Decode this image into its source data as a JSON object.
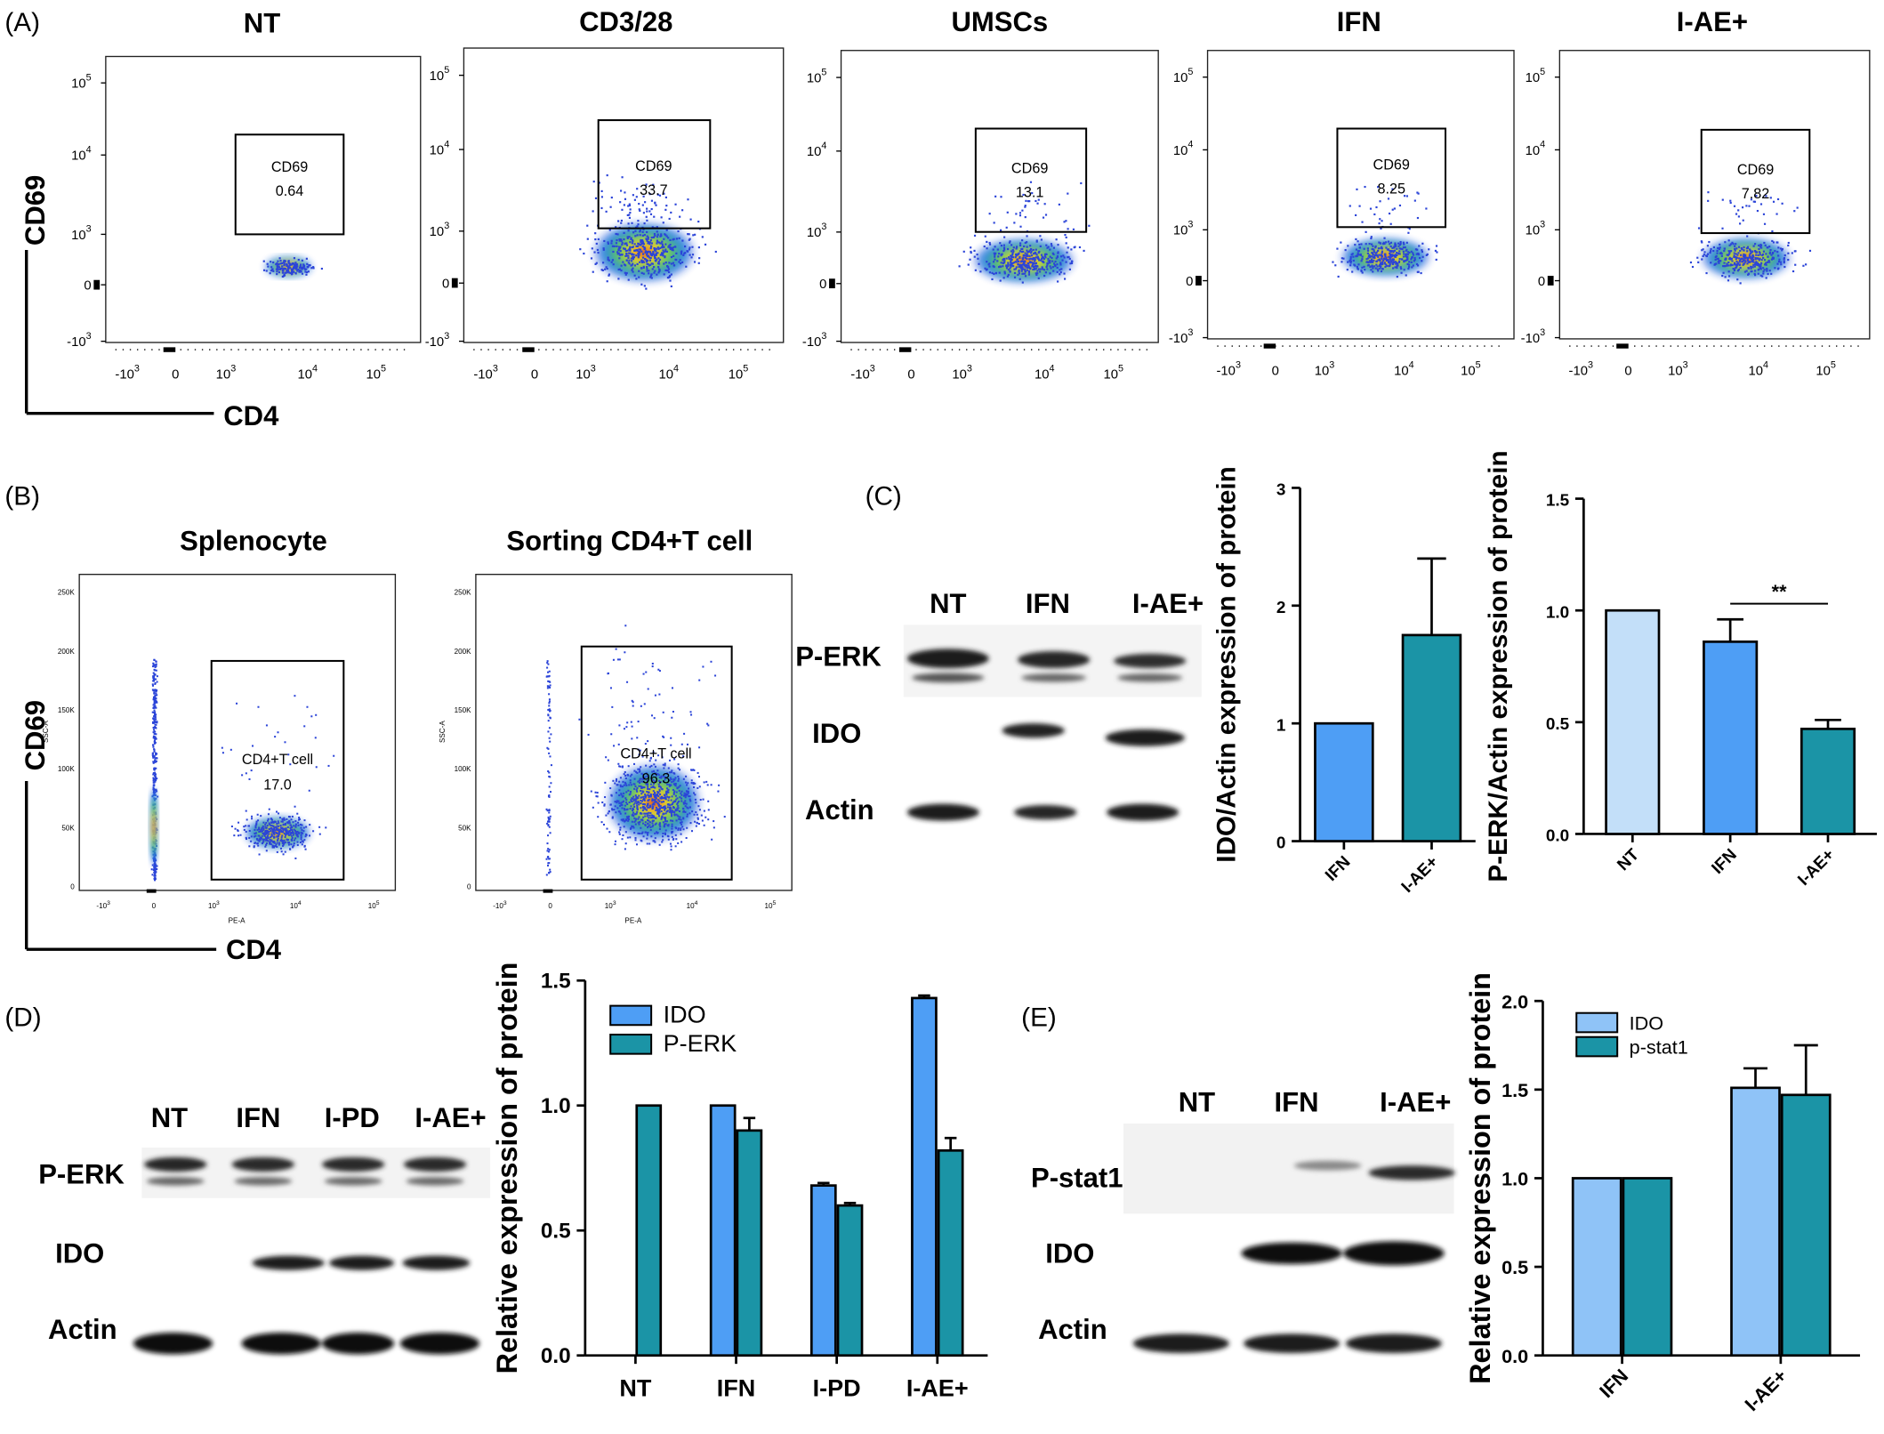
{
  "panel_labels": {
    "A": "(A)",
    "B": "(B)",
    "C": "(C)",
    "D": "(D)",
    "E": "(E)"
  },
  "flow_a": {
    "ylabel": "CD69",
    "xlabel": "CD4",
    "x_ticks": [
      "-10",
      "3",
      "0",
      "10",
      "3",
      "10",
      "4",
      "10",
      "5"
    ],
    "y_ticks": [
      [
        "10",
        "5"
      ],
      [
        "10",
        "4"
      ],
      [
        "10",
        "3"
      ],
      [
        "0",
        ""
      ],
      [
        "-10",
        "3"
      ]
    ],
    "gate_name": "CD69",
    "panels": [
      {
        "title": "NT",
        "gate_value": "0.64"
      },
      {
        "title": "CD3/28",
        "gate_value": "33.7"
      },
      {
        "title": "UMSCs",
        "gate_value": "13.1"
      },
      {
        "title": "IFN",
        "gate_value": "8.25"
      },
      {
        "title": "I-AE+",
        "gate_value": "7.82"
      }
    ]
  },
  "flow_b": {
    "ylabel": "CD69",
    "xlabel": "CD4",
    "axis_x": "PE-A",
    "axis_y": "SSC-A",
    "y_ticks": [
      "250K",
      "200K",
      "150K",
      "100K",
      "50K",
      "0"
    ],
    "panels": [
      {
        "title": "Splenocyte",
        "gate_name": "CD4+T cell",
        "gate_value": "17.0"
      },
      {
        "title": "Sorting CD4+T cell",
        "gate_name": "CD4+T cell",
        "gate_value": "96.3"
      }
    ]
  },
  "blot_c": {
    "lanes": [
      "NT",
      "IFN",
      "I-AE+"
    ],
    "rows": [
      "P-ERK",
      "IDO",
      "Actin"
    ]
  },
  "blot_d": {
    "lanes": [
      "NT",
      "IFN",
      "I-PD",
      "I-AE+"
    ],
    "rows": [
      "P-ERK",
      "IDO",
      "Actin"
    ]
  },
  "blot_e": {
    "lanes": [
      "NT",
      "IFN",
      "I-AE+"
    ],
    "rows": [
      "P-stat1",
      "IDO",
      "Actin"
    ]
  },
  "colors": {
    "light": "#c3dff9",
    "blue": "#4e9ef5",
    "teal": "#1b94a6",
    "paleblue": "#8fc3f7"
  },
  "chart_data": [
    {
      "id": "C1",
      "type": "bar",
      "ylabel": "IDO/Actin expression of protein",
      "ylim": [
        0,
        3
      ],
      "yticks": [
        "0",
        "1",
        "2",
        "3"
      ],
      "categories": [
        "IFN",
        "I-AE+"
      ],
      "values": [
        1.0,
        1.75
      ],
      "errors": [
        0,
        0.65
      ],
      "colors": [
        "#4e9ef5",
        "#1b94a6"
      ]
    },
    {
      "id": "C2",
      "type": "bar",
      "ylabel": "P-ERK/Actin expression of protein",
      "ylim": [
        0,
        1.5
      ],
      "yticks": [
        "0.0",
        "0.5",
        "1.0",
        "1.5"
      ],
      "categories": [
        "NT",
        "IFN",
        "I-AE+"
      ],
      "values": [
        1.0,
        0.86,
        0.47
      ],
      "errors": [
        0,
        0.1,
        0.04
      ],
      "colors": [
        "#c3dff9",
        "#4e9ef5",
        "#1b94a6"
      ],
      "annotation": "**"
    },
    {
      "id": "D",
      "type": "bar",
      "ylabel": "Relative expression of protein",
      "ylim": [
        0,
        1.5
      ],
      "yticks": [
        "0.0",
        "0.5",
        "1.0",
        "1.5"
      ],
      "categories": [
        "NT",
        "IFN",
        "I-PD",
        "I-AE+"
      ],
      "legend": "top-left",
      "series": [
        {
          "name": "IDO",
          "color": "#4e9ef5",
          "values": [
            0,
            1.0,
            0.68,
            1.43
          ],
          "errors": [
            0,
            0,
            0.01,
            0.01
          ]
        },
        {
          "name": "P-ERK",
          "color": "#1b94a6",
          "values": [
            1.0,
            0.9,
            0.6,
            0.82
          ],
          "errors": [
            0,
            0.05,
            0.01,
            0.05
          ]
        }
      ]
    },
    {
      "id": "E",
      "type": "bar",
      "ylabel": "Relative expression of protein",
      "ylim": [
        0,
        2
      ],
      "yticks": [
        "0.0",
        "0.5",
        "1.0",
        "1.5",
        "2.0"
      ],
      "categories": [
        "IFN",
        "I-AE+"
      ],
      "legend": "top-left",
      "series": [
        {
          "name": "IDO",
          "color": "#8fc3f7",
          "values": [
            1.0,
            1.51
          ],
          "errors": [
            0,
            0.11
          ]
        },
        {
          "name": "p-stat1",
          "color": "#1b94a6",
          "values": [
            1.0,
            1.47
          ],
          "errors": [
            0,
            0.28
          ]
        }
      ]
    }
  ]
}
